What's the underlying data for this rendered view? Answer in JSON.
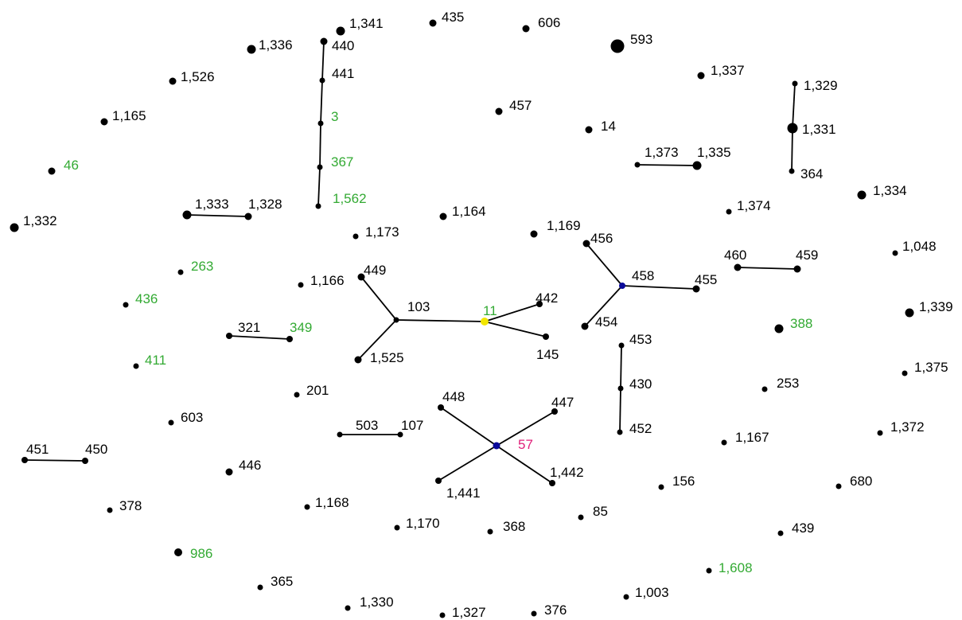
{
  "colors": {
    "background": "#ffffff",
    "node": "#000000",
    "edge": "#000000",
    "label_default": "#000000",
    "label_green": "#33aa33",
    "label_pink": "#e0217a",
    "hub_blue": "#0a0a9a",
    "hub_yellow": "#f2e600"
  },
  "nodes": [
    {
      "id": "1,341",
      "label": "1,341"
    },
    {
      "id": "435",
      "label": "435"
    },
    {
      "id": "606",
      "label": "606"
    },
    {
      "id": "593",
      "label": "593"
    },
    {
      "id": "1,336",
      "label": "1,336"
    },
    {
      "id": "440",
      "label": "440"
    },
    {
      "id": "441",
      "label": "441"
    },
    {
      "id": "3",
      "label": "3",
      "color": "green"
    },
    {
      "id": "367",
      "label": "367",
      "color": "green"
    },
    {
      "id": "1,562",
      "label": "1,562",
      "color": "green"
    },
    {
      "id": "1,526",
      "label": "1,526"
    },
    {
      "id": "1,165",
      "label": "1,165"
    },
    {
      "id": "46",
      "label": "46",
      "color": "green"
    },
    {
      "id": "1,332",
      "label": "1,332"
    },
    {
      "id": "1,333",
      "label": "1,333"
    },
    {
      "id": "1,328",
      "label": "1,328"
    },
    {
      "id": "1,173",
      "label": "1,173"
    },
    {
      "id": "1,164",
      "label": "1,164"
    },
    {
      "id": "457",
      "label": "457"
    },
    {
      "id": "14",
      "label": "14"
    },
    {
      "id": "1,337",
      "label": "1,337"
    },
    {
      "id": "1,329",
      "label": "1,329"
    },
    {
      "id": "1,331",
      "label": "1,331"
    },
    {
      "id": "364",
      "label": "364"
    },
    {
      "id": "1,373",
      "label": "1,373"
    },
    {
      "id": "1,335",
      "label": "1,335"
    },
    {
      "id": "1,334",
      "label": "1,334"
    },
    {
      "id": "1,374",
      "label": "1,374"
    },
    {
      "id": "1,169",
      "label": "1,169"
    },
    {
      "id": "263",
      "label": "263",
      "color": "green"
    },
    {
      "id": "1,166",
      "label": "1,166"
    },
    {
      "id": "449",
      "label": "449"
    },
    {
      "id": "103",
      "label": "103"
    },
    {
      "id": "11",
      "label": "11",
      "color": "green"
    },
    {
      "id": "442",
      "label": "442"
    },
    {
      "id": "145",
      "label": "145"
    },
    {
      "id": "1,525",
      "label": "1,525"
    },
    {
      "id": "456",
      "label": "456"
    },
    {
      "id": "458",
      "label": "458"
    },
    {
      "id": "455",
      "label": "455"
    },
    {
      "id": "454",
      "label": "454"
    },
    {
      "id": "460",
      "label": "460"
    },
    {
      "id": "459",
      "label": "459"
    },
    {
      "id": "1,048",
      "label": "1,048"
    },
    {
      "id": "1,339",
      "label": "1,339"
    },
    {
      "id": "436",
      "label": "436",
      "color": "green"
    },
    {
      "id": "321",
      "label": "321"
    },
    {
      "id": "349",
      "label": "349",
      "color": "green"
    },
    {
      "id": "411",
      "label": "411",
      "color": "green"
    },
    {
      "id": "388",
      "label": "388",
      "color": "green"
    },
    {
      "id": "453",
      "label": "453"
    },
    {
      "id": "430",
      "label": "430"
    },
    {
      "id": "452",
      "label": "452"
    },
    {
      "id": "201",
      "label": "201"
    },
    {
      "id": "253",
      "label": "253"
    },
    {
      "id": "1,375",
      "label": "1,375"
    },
    {
      "id": "603",
      "label": "603"
    },
    {
      "id": "503",
      "label": "503"
    },
    {
      "id": "107",
      "label": "107"
    },
    {
      "id": "448",
      "label": "448"
    },
    {
      "id": "447",
      "label": "447"
    },
    {
      "id": "57",
      "label": "57",
      "color": "pink"
    },
    {
      "id": "1,441",
      "label": "1,441"
    },
    {
      "id": "1,442",
      "label": "1,442"
    },
    {
      "id": "1,167",
      "label": "1,167"
    },
    {
      "id": "1,372",
      "label": "1,372"
    },
    {
      "id": "451",
      "label": "451"
    },
    {
      "id": "450",
      "label": "450"
    },
    {
      "id": "446",
      "label": "446"
    },
    {
      "id": "156",
      "label": "156"
    },
    {
      "id": "680",
      "label": "680"
    },
    {
      "id": "378",
      "label": "378"
    },
    {
      "id": "1,168",
      "label": "1,168"
    },
    {
      "id": "85",
      "label": "85"
    },
    {
      "id": "1,170",
      "label": "1,170"
    },
    {
      "id": "368",
      "label": "368"
    },
    {
      "id": "439",
      "label": "439"
    },
    {
      "id": "986",
      "label": "986",
      "color": "green"
    },
    {
      "id": "1,608",
      "label": "1,608",
      "color": "green"
    },
    {
      "id": "365",
      "label": "365"
    },
    {
      "id": "1,003",
      "label": "1,003"
    },
    {
      "id": "1,330",
      "label": "1,330"
    },
    {
      "id": "1,327",
      "label": "1,327"
    },
    {
      "id": "376",
      "label": "376"
    }
  ],
  "edges": [
    [
      "440",
      "441"
    ],
    [
      "441",
      "3"
    ],
    [
      "3",
      "367"
    ],
    [
      "367",
      "1,562"
    ],
    [
      "1,333",
      "1,328"
    ],
    [
      "1,329",
      "1,331"
    ],
    [
      "1,331",
      "364"
    ],
    [
      "1,373",
      "1,335"
    ],
    [
      "449",
      "103"
    ],
    [
      "1,525",
      "103"
    ],
    [
      "103",
      "11"
    ],
    [
      "11",
      "442"
    ],
    [
      "11",
      "145"
    ],
    [
      "456",
      "458"
    ],
    [
      "454",
      "458"
    ],
    [
      "458",
      "455"
    ],
    [
      "460",
      "459"
    ],
    [
      "321",
      "349"
    ],
    [
      "453",
      "430"
    ],
    [
      "430",
      "452"
    ],
    [
      "503",
      "107"
    ],
    [
      "448",
      "57"
    ],
    [
      "447",
      "57"
    ],
    [
      "1,441",
      "57"
    ],
    [
      "1,442",
      "57"
    ],
    [
      "451",
      "450"
    ]
  ]
}
